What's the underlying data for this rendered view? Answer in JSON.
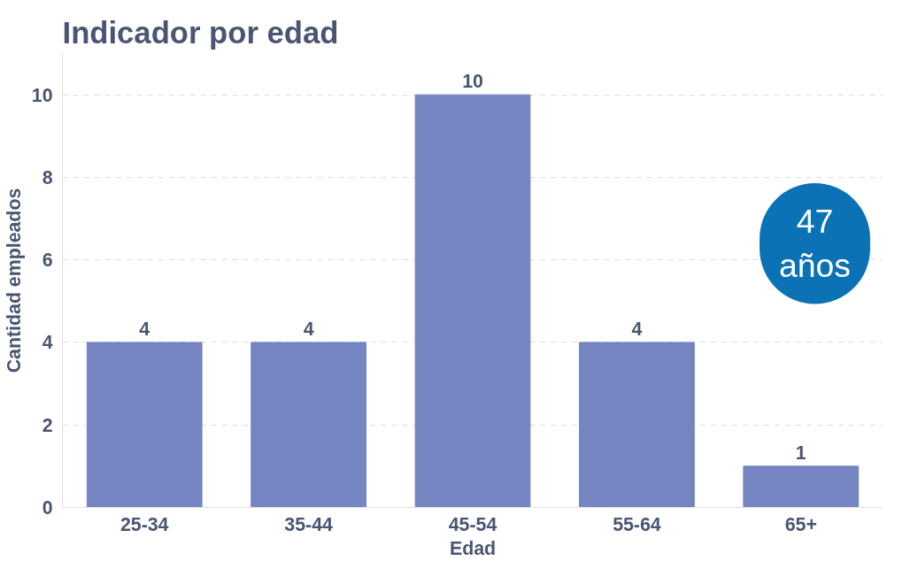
{
  "chart_data": {
    "type": "bar",
    "title": "Indicador por edad",
    "xlabel": "Edad",
    "ylabel": "Cantidad empleados",
    "categories": [
      "25-34",
      "35-44",
      "45-54",
      "55-64",
      "65+"
    ],
    "values": [
      4,
      4,
      10,
      4,
      1
    ],
    "color": "#7585c2",
    "ylim": [
      0,
      11
    ],
    "yticks": [
      0,
      2,
      4,
      6,
      8,
      10
    ],
    "grid": "y",
    "data_labels": true,
    "annotations": [
      "47\naños"
    ]
  }
}
